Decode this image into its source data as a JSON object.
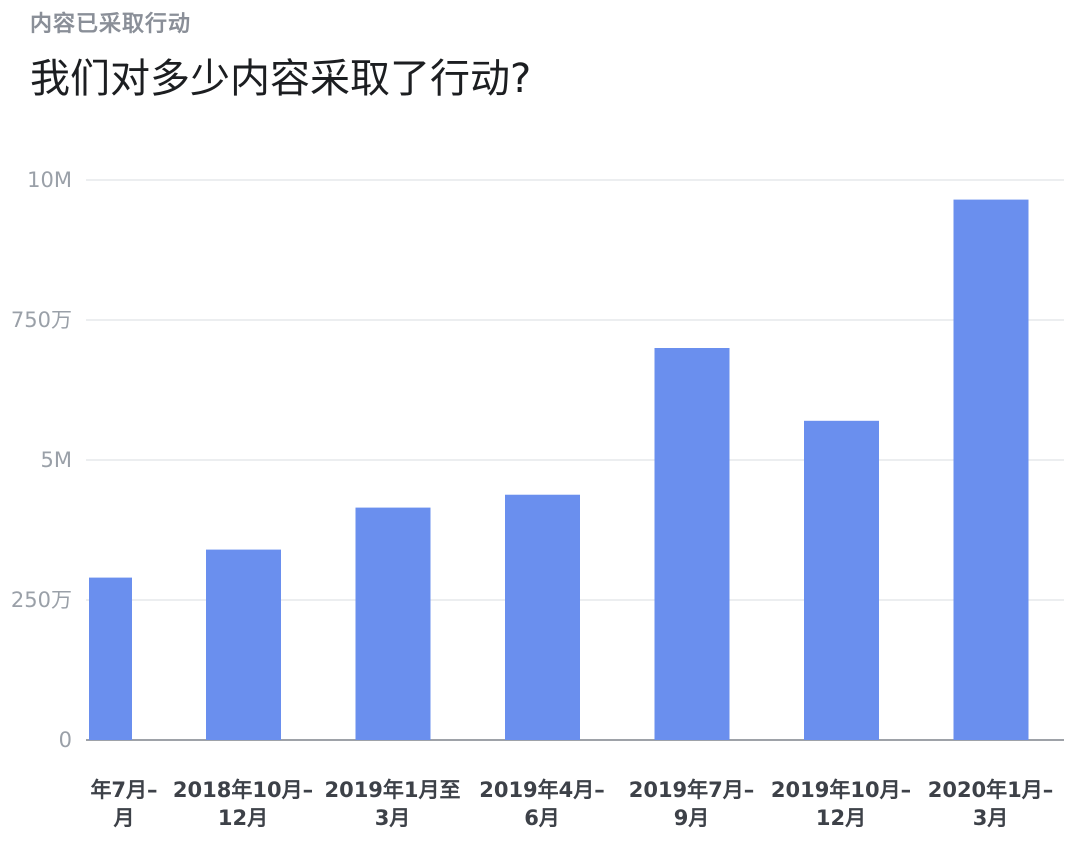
{
  "header": {
    "eyebrow": "内容已采取行动",
    "title": "我们对多少内容采取了行动?"
  },
  "colors": {
    "bar": "#6a8fee",
    "grid": "#d9dce1",
    "baseline": "#7f848b"
  },
  "chart_data": {
    "type": "bar",
    "title": "我们对多少内容采取了行动?",
    "xlabel": "",
    "ylabel": "",
    "ylim": [
      0,
      10000000
    ],
    "y_ticks": [
      {
        "value": 10000000,
        "label": "10M"
      },
      {
        "value": 7500000,
        "label": "750万"
      },
      {
        "value": 5000000,
        "label": "5M"
      },
      {
        "value": 2500000,
        "label": "250万"
      },
      {
        "value": 0,
        "label": "0"
      }
    ],
    "categories": [
      [
        "年7月–",
        "月"
      ],
      [
        "2018年10月–",
        "12月"
      ],
      [
        "2019年1月至",
        "3月"
      ],
      [
        "2019年4月–",
        "6月"
      ],
      [
        "2019年7月–",
        "9月"
      ],
      [
        "2019年10月–",
        "12月"
      ],
      [
        "2020年1月–",
        "3月"
      ]
    ],
    "values": [
      2900000,
      3400000,
      4150000,
      4380000,
      7000000,
      5700000,
      9650000
    ],
    "grid": true
  }
}
